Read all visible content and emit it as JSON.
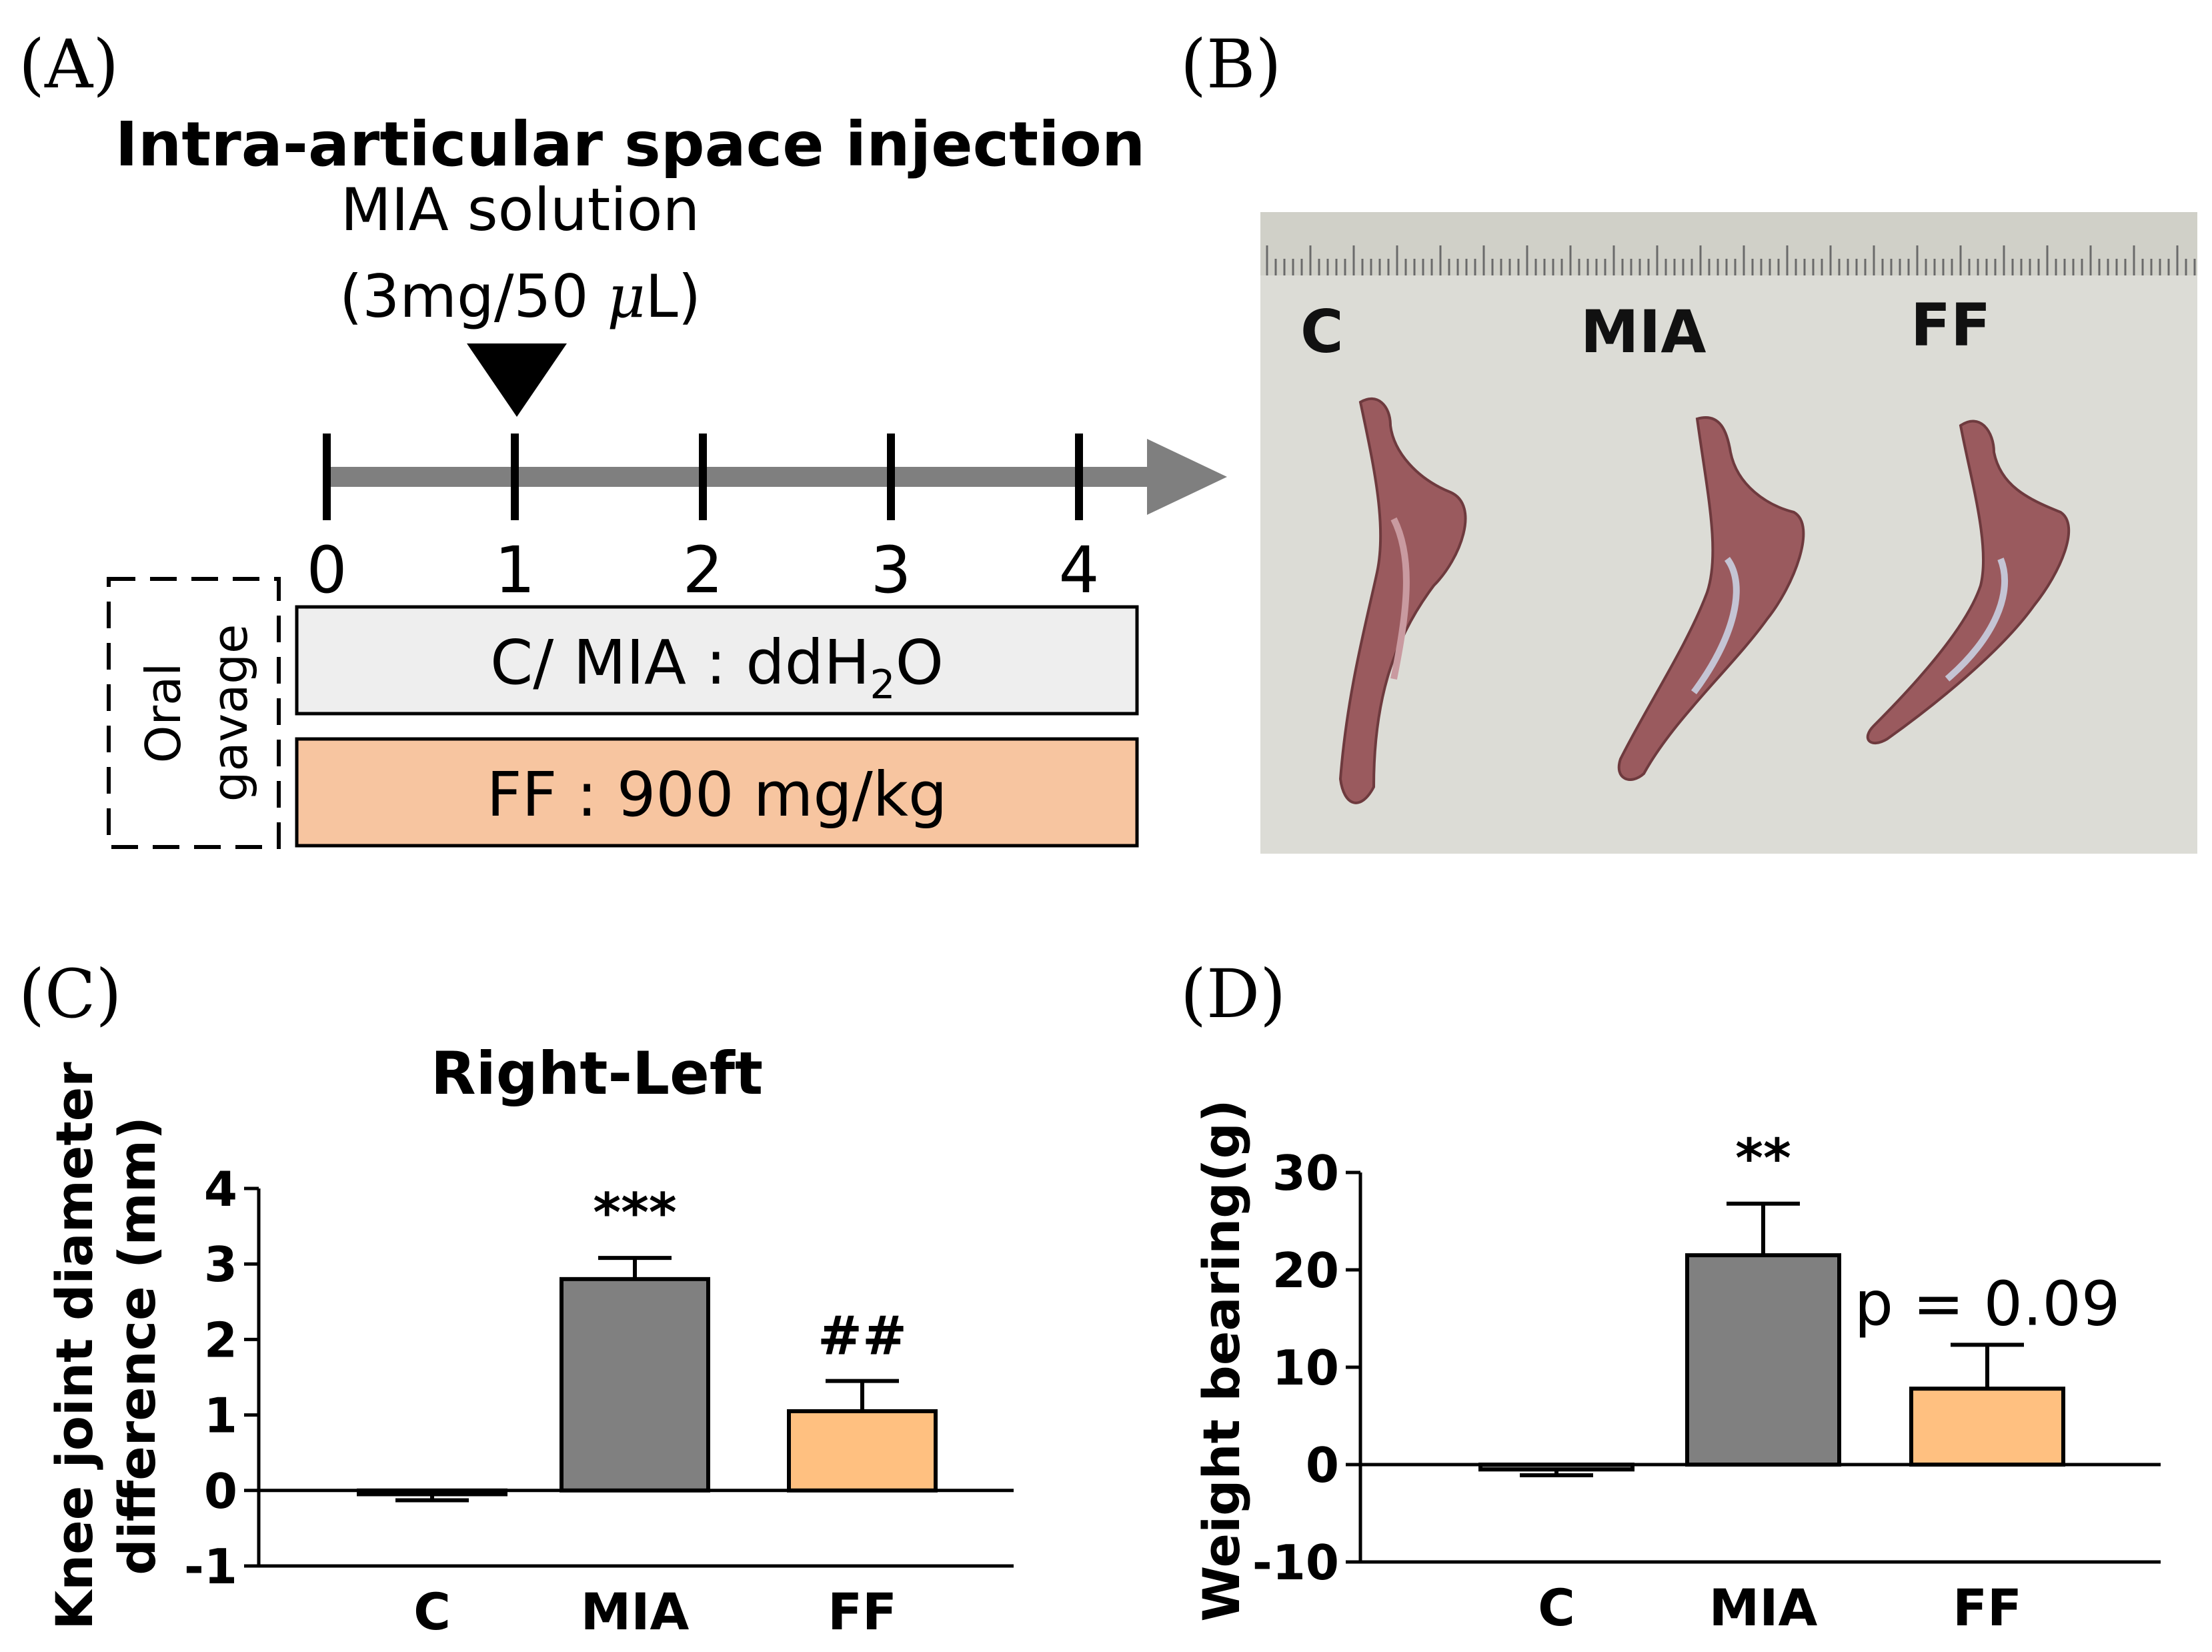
{
  "panels": {
    "a": "(A)",
    "b": "(B)",
    "c": "(C)",
    "d": "(D)"
  },
  "panel_a": {
    "title": "Intra-articular space injection",
    "solution_line1": "MIA solution",
    "solution_dose_prefix": "(3mg/50 ",
    "solution_dose_mu": "μ",
    "solution_dose_suffix": "L)",
    "timeline_ticks": [
      "0",
      "1",
      "2",
      "3",
      "4"
    ],
    "oral_label_line1": "Oral",
    "oral_label_line2": "gavage",
    "group1_prefix": "C/ MIA : ddH",
    "group1_sub": "2",
    "group1_suffix": "O",
    "group2_text": "FF : 900 mg/kg",
    "group1_color": "#eeeeee",
    "group2_color": "#f7c5a0"
  },
  "panel_b": {
    "labels": [
      "C",
      "MIA",
      "FF"
    ],
    "background_color": "#dcdcd6",
    "specimen_color": "#9a5a5e"
  },
  "chart_data": [
    {
      "type": "bar",
      "title": "Right-Left",
      "ylabel_line1": "Knee joint diameter",
      "ylabel_line2": "difference (mm)",
      "xlabel": "",
      "categories": [
        "C",
        "MIA",
        "FF"
      ],
      "values": [
        -0.05,
        2.8,
        1.05
      ],
      "errors": [
        0.08,
        0.28,
        0.4
      ],
      "ylim": [
        -1,
        4
      ],
      "yticks": [
        "-1",
        "0",
        "1",
        "2",
        "3",
        "4"
      ],
      "ytick_values": [
        -1,
        0,
        1,
        2,
        3,
        4
      ],
      "annotations": [
        "",
        "***",
        "##"
      ],
      "colors": [
        "#808080",
        "#808080",
        "#ffc080"
      ]
    },
    {
      "type": "bar",
      "title": "",
      "ylabel": "Weight bearing(g)",
      "xlabel": "",
      "categories": [
        "C",
        "MIA",
        "FF"
      ],
      "values": [
        -0.5,
        21.5,
        7.8
      ],
      "errors": [
        0.6,
        5.3,
        4.5
      ],
      "ylim": [
        -10,
        30
      ],
      "yticks": [
        "-10",
        "0",
        "10",
        "20",
        "30"
      ],
      "ytick_values": [
        -10,
        0,
        10,
        20,
        30
      ],
      "annotations": [
        "",
        "**",
        "p = 0.09"
      ],
      "colors": [
        "#808080",
        "#808080",
        "#ffc080"
      ]
    }
  ]
}
